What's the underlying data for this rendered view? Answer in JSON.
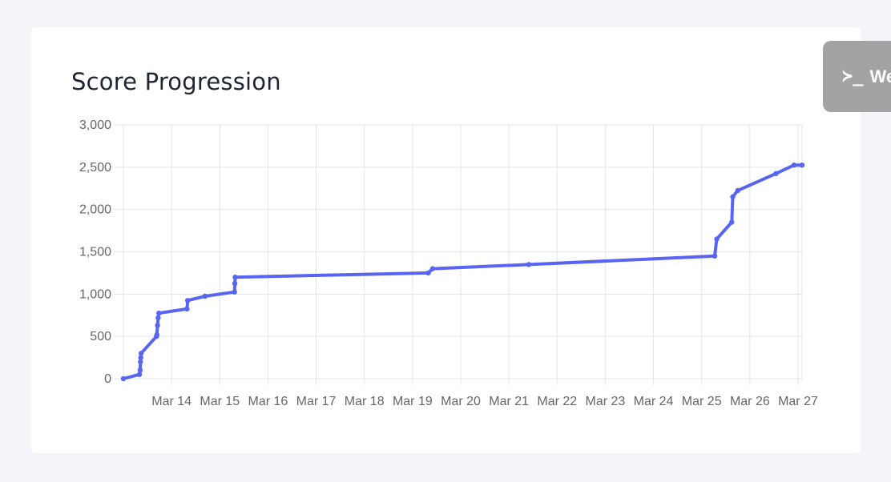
{
  "card": {
    "title": "Score Progression"
  },
  "console_tab": {
    "icon": "terminal-prompt-icon",
    "icon_glyph": "≻_",
    "label": "We"
  },
  "colors": {
    "line": "#5865f2",
    "grid": "#e5e5e5",
    "tick_text": "#666666",
    "background": "#f4f5f9",
    "card": "#ffffff",
    "console_tab": "#a3a3a3"
  },
  "chart_data": {
    "type": "line",
    "title": "Score Progression",
    "xlabel": "",
    "ylabel": "",
    "grid": true,
    "legend": "none",
    "x_ticks": [
      "Mar 14",
      "Mar 15",
      "Mar 16",
      "Mar 17",
      "Mar 18",
      "Mar 19",
      "Mar 20",
      "Mar 21",
      "Mar 22",
      "Mar 23",
      "Mar 24",
      "Mar 25",
      "Mar 26",
      "Mar 27"
    ],
    "y_ticks": [
      "0",
      "500",
      "1,000",
      "1,500",
      "2,000",
      "2,500",
      "3,000"
    ],
    "ylim": [
      0,
      3000
    ],
    "xlim": [
      "Mar 13 00:00",
      "Mar 27 02:00"
    ],
    "series": [
      {
        "x": [
          "Mar 13 00:00",
          "Mar 13 08:00",
          "Mar 13 08:20",
          "Mar 13 08:30",
          "Mar 13 08:40",
          "Mar 13 08:50",
          "Mar 13 16:30",
          "Mar 13 16:40",
          "Mar 13 17:00",
          "Mar 13 17:20",
          "Mar 13 17:40",
          "Mar 14 07:40",
          "Mar 14 08:00",
          "Mar 14 16:40",
          "Mar 15 07:20",
          "Mar 15 07:30",
          "Mar 15 07:40",
          "Mar 19 07:50",
          "Mar 19 10:00",
          "Mar 21 09:50",
          "Mar 25 06:30",
          "Mar 25 07:30",
          "Mar 25 15:00",
          "Mar 25 15:30",
          "Mar 25 18:00",
          "Mar 26 13:00",
          "Mar 26 22:00",
          "Mar 27 02:00"
        ],
        "y": [
          0,
          50,
          100,
          200,
          250,
          300,
          500,
          520,
          630,
          720,
          775,
          825,
          925,
          975,
          1025,
          1125,
          1200,
          1250,
          1300,
          1350,
          1450,
          1650,
          1850,
          2150,
          2225,
          2425,
          2525,
          2525
        ]
      }
    ]
  }
}
